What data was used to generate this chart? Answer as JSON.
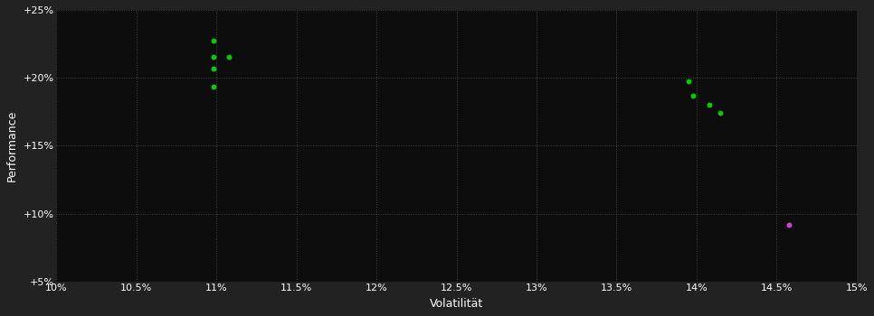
{
  "background_color": "#1a1a1a",
  "plot_bg_color": "#0d0d0d",
  "grid_color": "#444444",
  "xlabel": "Volatilität",
  "ylabel": "Performance",
  "xlim": [
    0.1,
    0.15
  ],
  "ylim": [
    0.05,
    0.25
  ],
  "xticks": [
    0.1,
    0.105,
    0.11,
    0.115,
    0.12,
    0.125,
    0.13,
    0.135,
    0.14,
    0.145,
    0.15
  ],
  "xtick_labels": [
    "10%",
    "10.5%",
    "11%",
    "11.5%",
    "12%",
    "12.5%",
    "13%",
    "13.5%",
    "14%",
    "14.5%",
    "15%"
  ],
  "yticks": [
    0.05,
    0.1,
    0.15,
    0.2,
    0.25
  ],
  "ytick_labels": [
    "+5%",
    "+10%",
    "+15%",
    "+20%",
    "+25%"
  ],
  "green_dots": [
    [
      0.1098,
      0.2275
    ],
    [
      0.1098,
      0.2155
    ],
    [
      0.1108,
      0.2155
    ],
    [
      0.1098,
      0.2065
    ],
    [
      0.1098,
      0.1935
    ],
    [
      0.1395,
      0.1975
    ],
    [
      0.1398,
      0.1865
    ],
    [
      0.1408,
      0.18
    ],
    [
      0.1415,
      0.174
    ]
  ],
  "magenta_dots": [
    [
      0.1458,
      0.092
    ]
  ],
  "dot_color_green": "#00cc00",
  "dot_color_magenta": "#cc44cc",
  "dot_size": 18,
  "tick_color": "#ffffff",
  "label_color": "#ffffff",
  "tick_fontsize": 8,
  "label_fontsize": 9,
  "outer_bg": "#222222"
}
